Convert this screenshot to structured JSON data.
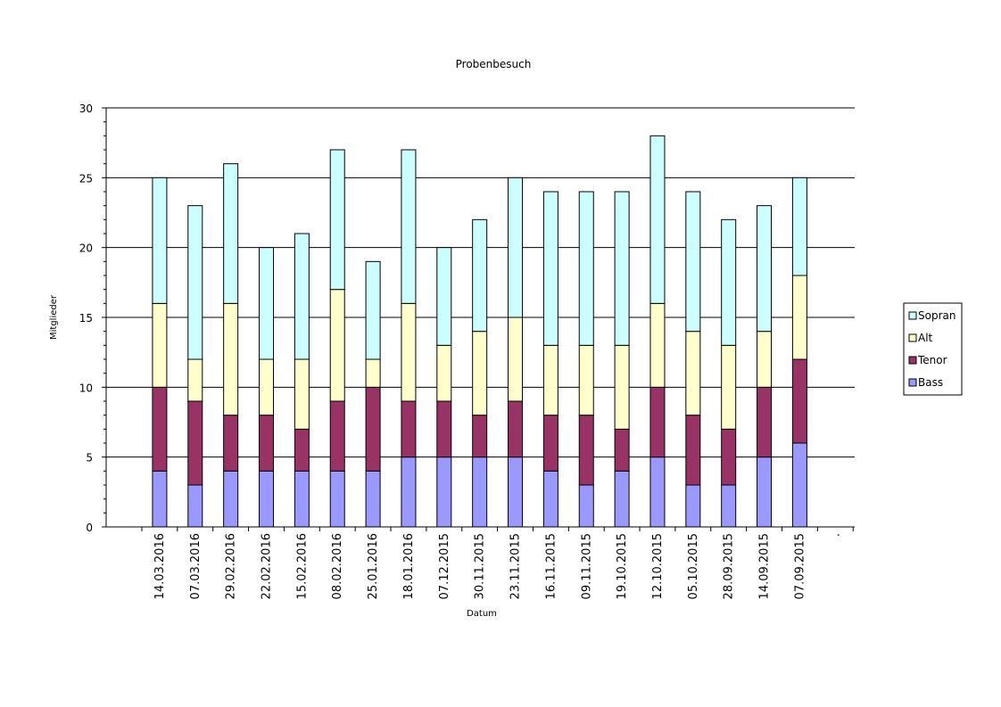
{
  "chart_data": {
    "type": "bar",
    "stacked": true,
    "title": "Probenbesuch",
    "xlabel": "Datum",
    "ylabel": "Mitglieder",
    "ylim": [
      0,
      30
    ],
    "yticks": [
      "0",
      "5",
      "10",
      "15",
      "20",
      "25",
      "30"
    ],
    "grid": true,
    "legend_position": "right",
    "categories": [
      "14.03.2016",
      "07.03.2016",
      "29.02.2016",
      "22.02.2016",
      "15.02.2016",
      "08.02.2016",
      "25.01.2016",
      "18.01.2016",
      "07.12.2015",
      "30.11.2015",
      "23.11.2015",
      "16.11.2015",
      "09.11.2015",
      "19.10.2015",
      "12.10.2015",
      "05.10.2015",
      "28.09.2015",
      "14.09.2015",
      "07.09.2015",
      "."
    ],
    "series": [
      {
        "name": "Bass",
        "color": "#9999ff",
        "values": [
          4,
          3,
          4,
          4,
          4,
          4,
          4,
          5,
          5,
          5,
          5,
          4,
          3,
          4,
          5,
          3,
          3,
          5,
          6,
          null
        ]
      },
      {
        "name": "Tenor",
        "color": "#993366",
        "values": [
          6,
          6,
          4,
          4,
          3,
          5,
          6,
          4,
          4,
          3,
          4,
          4,
          5,
          3,
          5,
          5,
          4,
          5,
          6,
          null
        ]
      },
      {
        "name": "Alt",
        "color": "#ffffcc",
        "values": [
          6,
          3,
          8,
          4,
          5,
          8,
          2,
          7,
          4,
          6,
          6,
          5,
          5,
          6,
          6,
          6,
          6,
          4,
          6,
          null
        ]
      },
      {
        "name": "Sopran",
        "color": "#ccffff",
        "values": [
          9,
          11,
          10,
          8,
          9,
          10,
          7,
          11,
          7,
          8,
          10,
          11,
          11,
          11,
          12,
          10,
          9,
          9,
          7,
          null
        ]
      }
    ],
    "legend_order": [
      "Sopran",
      "Alt",
      "Tenor",
      "Bass"
    ]
  }
}
